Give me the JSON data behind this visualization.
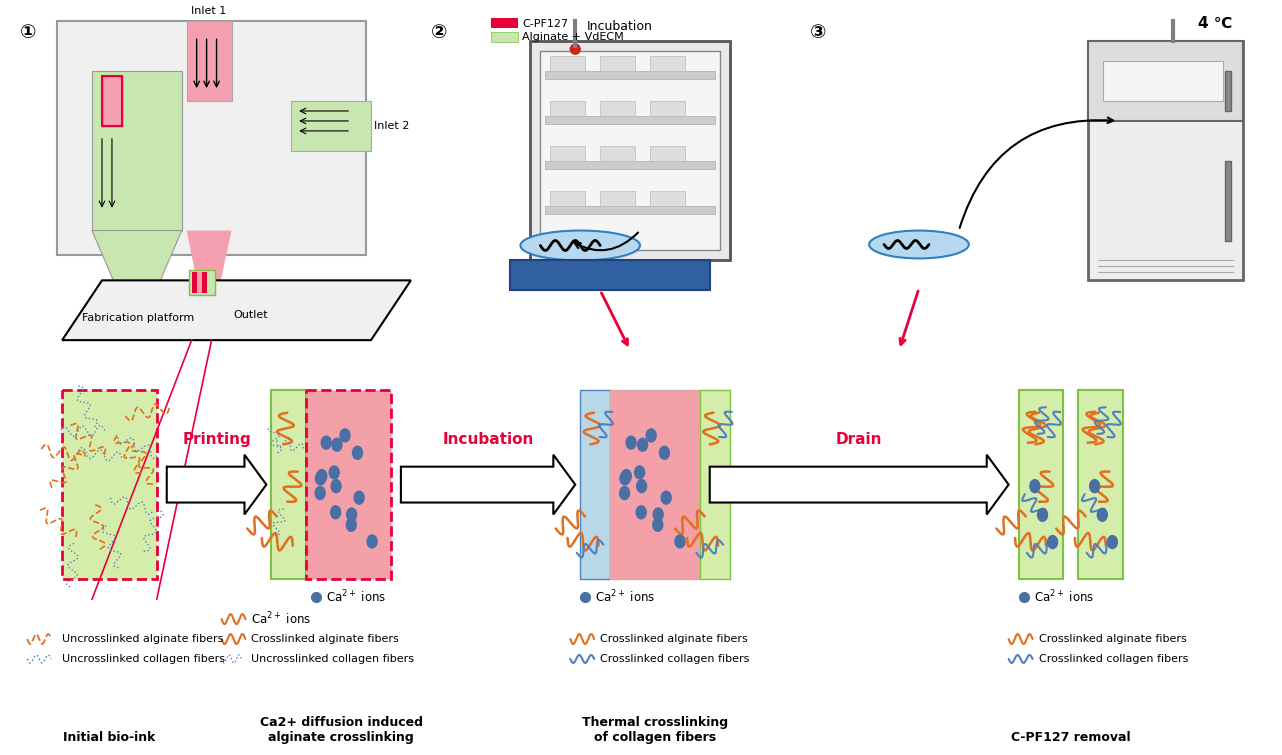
{
  "title": "",
  "bg_color": "#ffffff",
  "fig_width": 12.82,
  "fig_height": 7.55,
  "steps": [
    "Initial bio-ink",
    "Ca2+ diffusion induced\nalginate crosslinking",
    "Thermal crosslinking\nof collagen fibers",
    "C-PF127 removal"
  ],
  "step_labels": [
    "Printing",
    "Incubation",
    "Drain"
  ],
  "circle_labels": [
    "①",
    "②",
    "③"
  ],
  "legend_items": [
    {
      "color": "#e8003a",
      "label": "C-PF127"
    },
    {
      "color": "#7dc242",
      "label": "Alginate + VdECM"
    }
  ],
  "colors": {
    "pink_fill": "#f4a0a8",
    "green_fill": "#c8e6b0",
    "light_green": "#d4edaa",
    "red_border": "#e8003a",
    "green_border": "#7dc242",
    "blue_dot": "#4a6fa5",
    "orange_fiber": "#e07020",
    "blue_fiber": "#5080c0",
    "orange_dashed": "#e07020",
    "blue_dashed": "#5080c0",
    "arrow_outline": "#000000",
    "arrow_fill": "#ffffff",
    "label_red": "#e8003a"
  }
}
